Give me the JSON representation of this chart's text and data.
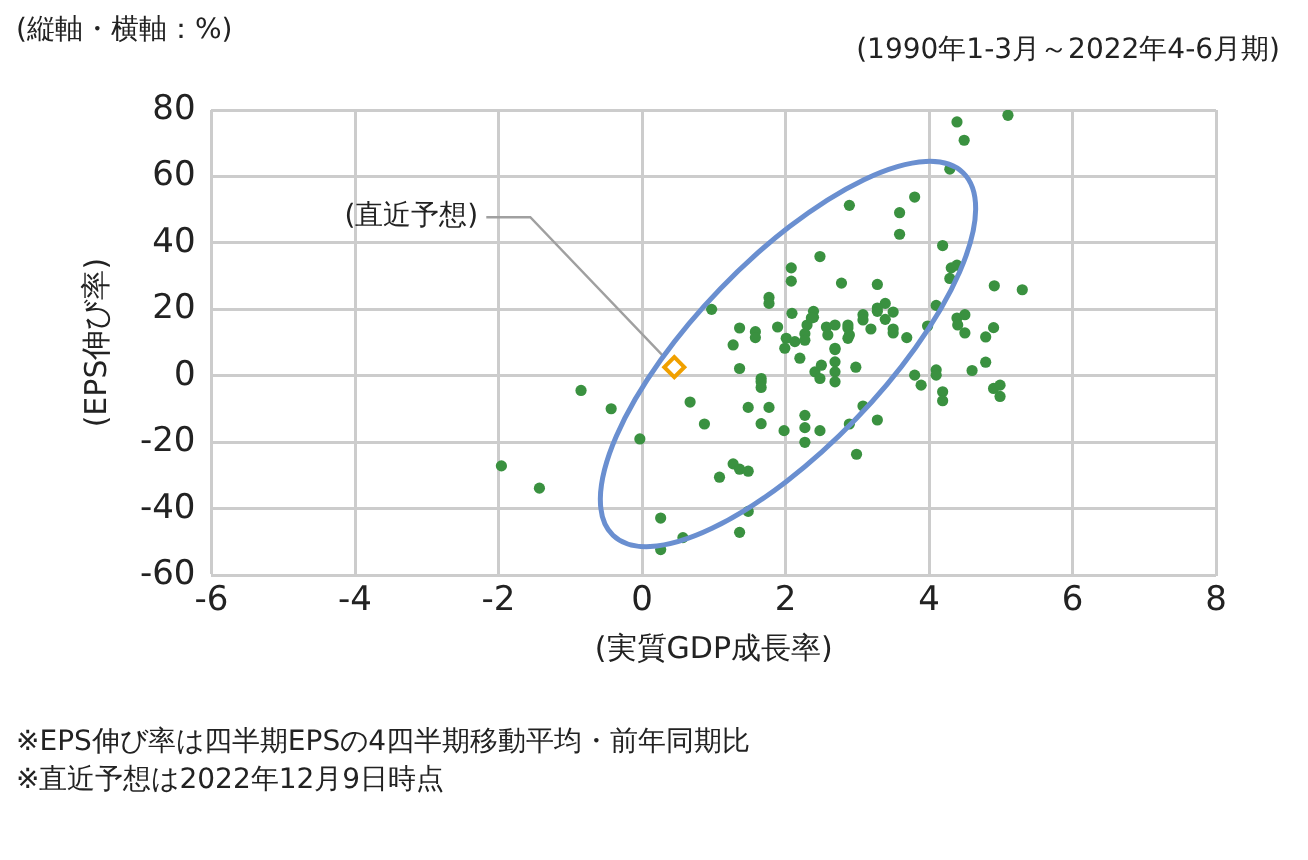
{
  "chart_data": {
    "type": "scatter",
    "title": "(縦軸・横軸：%)",
    "subtitle": "(1990年1-3月～2022年4-6月期)",
    "xlabel": "(実質GDP成長率)",
    "ylabel": "(EPS伸び率)",
    "xlim": [
      -6,
      8
    ],
    "xticks": [
      -6,
      -4,
      -2,
      0,
      2,
      4,
      6,
      8
    ],
    "ylim": [
      -60,
      80
    ],
    "yticks": [
      -60,
      -40,
      -20,
      0,
      20,
      40,
      60,
      80
    ],
    "grid": true,
    "legend": false,
    "marker": "circle",
    "series": [
      {
        "color": "#3a9140",
        "x": [
          2.89,
          2.48,
          2.08,
          2.08,
          2.78,
          1.77,
          1.77,
          0.97,
          2.09,
          2.39,
          2.39,
          1.36,
          1.58,
          1.58,
          1.89,
          2.3,
          2.27,
          2.57,
          2.59,
          2.69,
          2.87,
          2.87,
          2.01,
          2.13,
          2.27,
          1.27,
          1.99,
          2.69,
          1.36,
          2.2,
          2.41,
          2.5,
          2.69,
          2.69,
          2.98,
          1.66,
          5.1,
          4.39,
          4.49,
          4.29,
          3.8,
          3.59,
          3.59,
          4.19,
          4.31,
          4.39,
          4.29,
          3.28,
          4.91,
          5.3,
          4.1,
          3.39,
          3.28,
          3.28,
          3.5,
          3.08,
          3.08,
          3.39,
          3.98,
          4.39,
          4.5,
          4.4,
          4.5,
          4.9,
          4.79,
          3.19,
          3.5,
          3.5,
          3.69,
          2.87,
          2.89,
          2.36,
          2.69,
          4.79,
          4.6,
          4.1,
          4.1,
          3.8,
          3.89,
          4.19,
          4.19,
          4.9,
          4.99,
          4.99,
          2.48,
          2.69,
          3.08,
          2.27,
          2.27,
          2.27,
          2.48,
          2.89,
          3.28,
          2.99,
          -0.85,
          -0.43,
          -0.03,
          -1.96,
          -1.43,
          0.26,
          0.26,
          0.57,
          0.67,
          0.87,
          1.27,
          1.36,
          1.48,
          1.08,
          1.48,
          1.36,
          1.48,
          1.77,
          1.66,
          1.66,
          1.66,
          1.98
        ],
        "values": [
          51.3,
          35.9,
          32.5,
          28.5,
          27.9,
          23.6,
          21.8,
          20,
          18.8,
          19.4,
          17.6,
          14.4,
          13.3,
          11.5,
          14.7,
          15.3,
          12.7,
          14.7,
          12.3,
          15.3,
          14.4,
          11.3,
          11.3,
          10.3,
          10.7,
          9.3,
          8.3,
          8.3,
          2.2,
          5.3,
          1.2,
          3.2,
          4.2,
          1.2,
          2.6,
          -0.8,
          78.4,
          76.4,
          70.9,
          62.2,
          53.8,
          49.1,
          42.6,
          39.2,
          32.5,
          33.3,
          29.3,
          27.5,
          27.1,
          25.9,
          21.2,
          21.8,
          20.4,
          19.4,
          19.2,
          18.4,
          16.8,
          17,
          15,
          17.4,
          18.4,
          15.3,
          12.9,
          14.5,
          11.7,
          14.1,
          14.1,
          12.9,
          11.5,
          15.3,
          12.3,
          17.4,
          7.9,
          4.1,
          1.6,
          1.8,
          0.2,
          0.2,
          -2.8,
          -4.8,
          -7.5,
          -3.8,
          -2.8,
          -6.2,
          -0.8,
          -1.8,
          -9.1,
          -11.9,
          -15.6,
          -20,
          -16.5,
          -14.5,
          -13.3,
          -23.6,
          -4.4,
          -9.9,
          -19,
          -27.1,
          -33.8,
          -42.8,
          -52.3,
          -48.7,
          -7.9,
          -14.5,
          -26.5,
          -28.1,
          -28.7,
          -30.5,
          -40.8,
          -47.1,
          -9.5,
          -9.5,
          -1.8,
          -3.5,
          -14.4,
          -16.5
        ]
      },
      {
        "color": "#f0a000",
        "marker": "diamond",
        "x": [
          0.45
        ],
        "values": [
          2.6
        ]
      }
    ],
    "annotations": [
      {
        "text": "(直近予想)",
        "x": 0.45,
        "y": 2.6
      },
      "※EPS伸び率は四半期EPSの4四半期移動平均・前年同期比",
      "※直近予想は2022年12月9日時点"
    ]
  }
}
